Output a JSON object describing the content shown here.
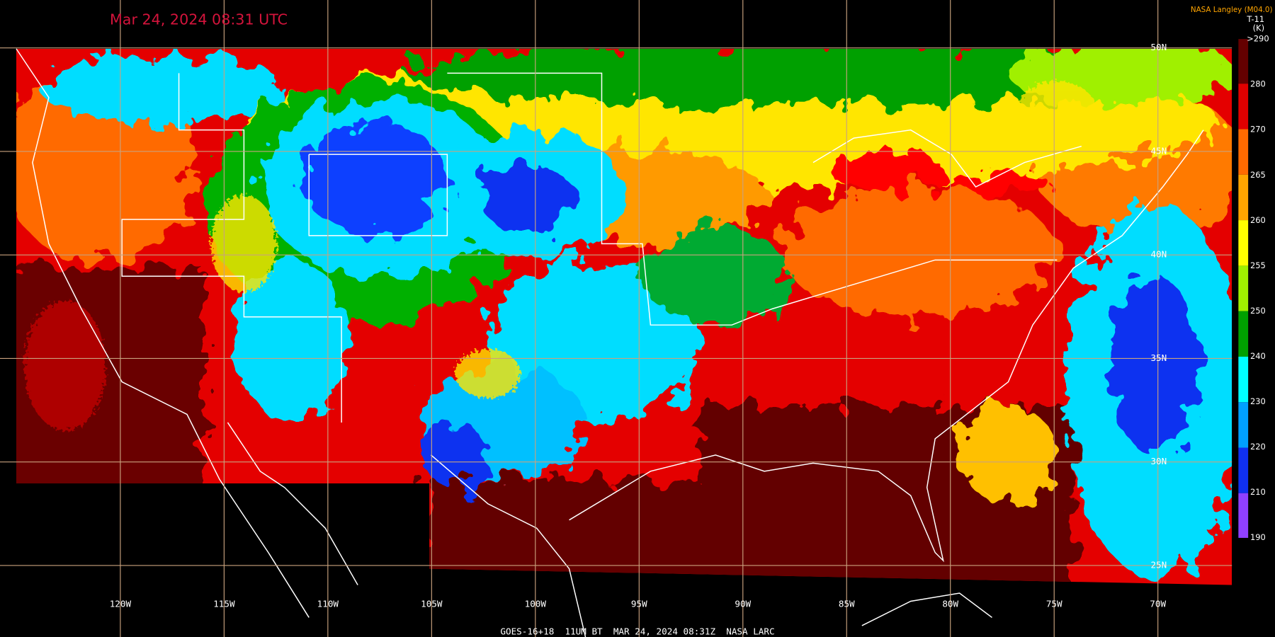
{
  "header": {
    "title": "Mar 24, 2024 08:31 UTC",
    "credit": "NASA Langley (M04.0)",
    "channel": "T-11",
    "unit": "(K)"
  },
  "colorbar": {
    "labels": [
      ">290",
      "280",
      "270",
      "265",
      "260",
      "255",
      "250",
      "240",
      "230",
      "220",
      "210",
      "190"
    ]
  },
  "longitudes": [
    "120W",
    "115W",
    "110W",
    "105W",
    "100W",
    "95W",
    "90W",
    "85W",
    "80W",
    "75W",
    "70W"
  ],
  "latitudes": [
    "50N",
    "45N",
    "40N",
    "35N",
    "30N",
    "25N"
  ],
  "footer": "GOES-16+18  11UM BT  MAR 24, 2024 08:31Z  NASA LARC"
}
